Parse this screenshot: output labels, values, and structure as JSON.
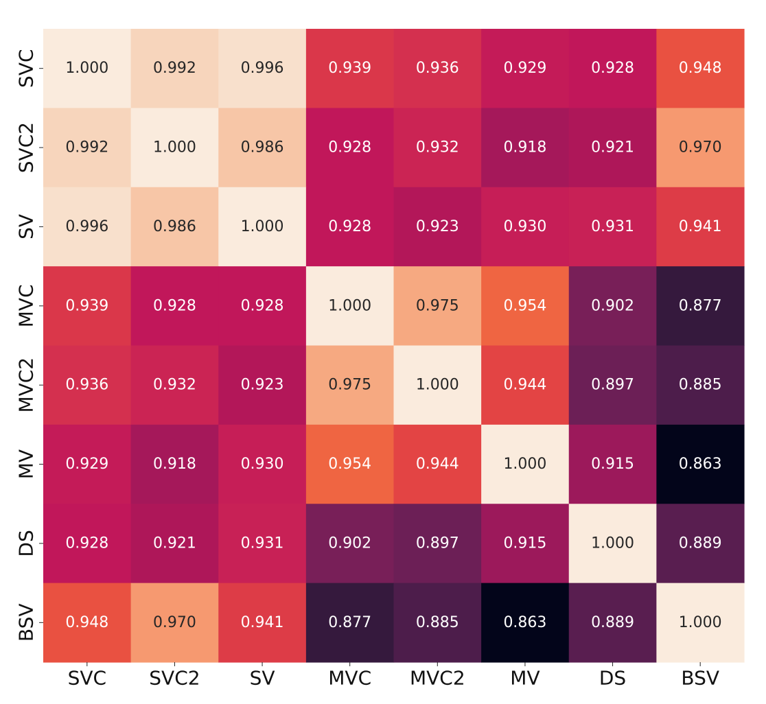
{
  "chart_data": {
    "type": "heatmap",
    "title": "",
    "xlabel": "",
    "ylabel": "",
    "x_categories": [
      "SVC",
      "SVC2",
      "SV",
      "MVC",
      "MVC2",
      "MV",
      "DS",
      "BSV"
    ],
    "y_categories": [
      "SVC",
      "SVC2",
      "SV",
      "MVC",
      "MVC2",
      "MV",
      "DS",
      "BSV"
    ],
    "values": [
      [
        1.0,
        0.992,
        0.996,
        0.939,
        0.936,
        0.929,
        0.928,
        0.948
      ],
      [
        0.992,
        1.0,
        0.986,
        0.928,
        0.932,
        0.918,
        0.921,
        0.97
      ],
      [
        0.996,
        0.986,
        1.0,
        0.928,
        0.923,
        0.93,
        0.931,
        0.941
      ],
      [
        0.939,
        0.928,
        0.928,
        1.0,
        0.975,
        0.954,
        0.902,
        0.877
      ],
      [
        0.936,
        0.932,
        0.923,
        0.975,
        1.0,
        0.944,
        0.897,
        0.885
      ],
      [
        0.929,
        0.918,
        0.93,
        0.954,
        0.944,
        1.0,
        0.915,
        0.863
      ],
      [
        0.928,
        0.921,
        0.931,
        0.902,
        0.897,
        0.915,
        1.0,
        0.889
      ],
      [
        0.948,
        0.97,
        0.941,
        0.877,
        0.885,
        0.863,
        0.889,
        1.0
      ]
    ],
    "cell_labels": [
      [
        "1.000",
        "0.992",
        "0.996",
        "0.939",
        "0.936",
        "0.929",
        "0.928",
        "0.948"
      ],
      [
        "0.992",
        "1.000",
        "0.986",
        "0.928",
        "0.932",
        "0.918",
        "0.921",
        "0.970"
      ],
      [
        "0.996",
        "0.986",
        "1.000",
        "0.928",
        "0.923",
        "0.930",
        "0.931",
        "0.941"
      ],
      [
        "0.939",
        "0.928",
        "0.928",
        "1.000",
        "0.975",
        "0.954",
        "0.902",
        "0.877"
      ],
      [
        "0.936",
        "0.932",
        "0.923",
        "0.975",
        "1.000",
        "0.944",
        "0.897",
        "0.885"
      ],
      [
        "0.929",
        "0.918",
        "0.930",
        "0.954",
        "0.944",
        "1.000",
        "0.915",
        "0.863"
      ],
      [
        "0.928",
        "0.921",
        "0.931",
        "0.902",
        "0.897",
        "0.915",
        "1.000",
        "0.889"
      ],
      [
        "0.948",
        "0.970",
        "0.941",
        "0.877",
        "0.885",
        "0.863",
        "0.889",
        "1.000"
      ]
    ],
    "value_range": [
      0.863,
      1.0
    ],
    "colormap": "rocket",
    "colorbar": false,
    "grid": false,
    "colormap_stops": [
      "#03051a",
      "#1f1432",
      "#36193e",
      "#4c1d4b",
      "#611f53",
      "#701f57",
      "#841e5a",
      "#97195c",
      "#ad1759",
      "#c1175a",
      "#d22e50",
      "#e03f45",
      "#ec5640",
      "#f16e43",
      "#f4875e",
      "#f69c73",
      "#f6b48e",
      "#f7c5a6",
      "#f7d7bf",
      "#faebdd"
    ],
    "text_colors": {
      "on_dark": "#ffffff",
      "on_light": "#262626"
    }
  }
}
